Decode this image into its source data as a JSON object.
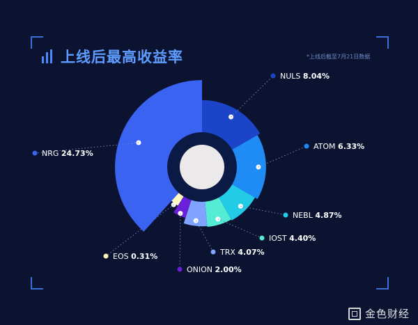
{
  "header": {
    "title": "上线后最高收益率",
    "note": "*上线后截至7月21日数据"
  },
  "watermark": {
    "text": "金色财经"
  },
  "colors": {
    "background": "#0b1330",
    "title": "#5f9cff",
    "label": "#ffffff",
    "inner_ring": "#0a1a45",
    "center": "#ece9ea"
  },
  "chart_data": {
    "type": "pie",
    "style": "polar-area",
    "slices": [
      {
        "name": "NULS",
        "value": 8.04,
        "label": "8.04%",
        "color": "#1c44c8"
      },
      {
        "name": "ATOM",
        "value": 6.33,
        "label": "6.33%",
        "color": "#1f8cf5"
      },
      {
        "name": "NEBL",
        "value": 4.87,
        "label": "4.87%",
        "color": "#22cbe6"
      },
      {
        "name": "IOST",
        "value": 4.4,
        "label": "4.40%",
        "color": "#55ecd5"
      },
      {
        "name": "TRX",
        "value": 4.07,
        "label": "4.07%",
        "color": "#7fa3ff"
      },
      {
        "name": "ONION",
        "value": 2.0,
        "label": "2.00%",
        "color": "#6a1fd8"
      },
      {
        "name": "EOS",
        "value": 0.31,
        "label": "0.31%",
        "color": "#fffbc2"
      },
      {
        "name": "NRG",
        "value": 24.73,
        "label": "24.73%",
        "color": "#3a63f2"
      }
    ]
  }
}
